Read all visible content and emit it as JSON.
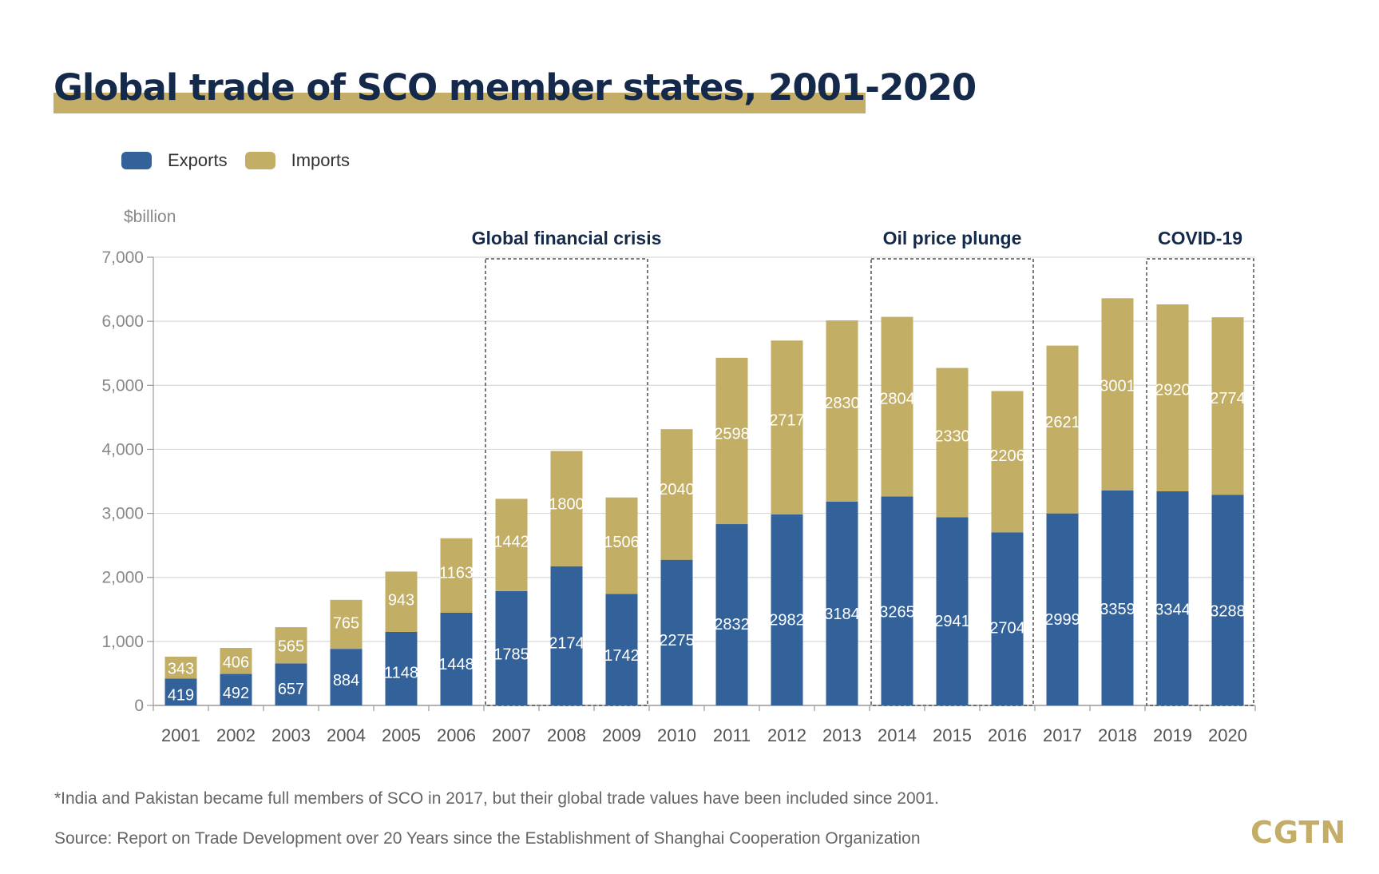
{
  "colors": {
    "exports": "#33629a",
    "imports": "#c3ae66",
    "title": "#152a4a",
    "accent": "#c4ae67"
  },
  "logo": "CGTN",
  "footnote": "*India and Pakistan became full members of SCO in 2017, but their global trade values have been included since 2001.",
  "source": "Source: Report on Trade Development over 20 Years since the Establishment of Shanghai Cooperation Organization",
  "chart_data": {
    "type": "bar",
    "stacked": true,
    "title": "Global trade of SCO member states, 2001-2020",
    "ylabel": "$billion",
    "ylim": [
      0,
      7000
    ],
    "yticks": [
      0,
      1000,
      2000,
      3000,
      4000,
      5000,
      6000,
      7000
    ],
    "ytick_labels": [
      "0",
      "1,000",
      "2,000",
      "3,000",
      "4,000",
      "5,000",
      "6,000",
      "7,000"
    ],
    "grid": true,
    "legend_position": "top-left",
    "categories": [
      "2001",
      "2002",
      "2003",
      "2004",
      "2005",
      "2006",
      "2007",
      "2008",
      "2009",
      "2010",
      "2011",
      "2012",
      "2013",
      "2014",
      "2015",
      "2016",
      "2017",
      "2018",
      "2019",
      "2020"
    ],
    "series": [
      {
        "name": "Exports",
        "values": [
          419,
          492,
          657,
          884,
          1148,
          1448,
          1785,
          2174,
          1742,
          2275,
          2832,
          2982,
          3184,
          3265,
          2941,
          2704,
          2999,
          3359,
          3344,
          3288
        ]
      },
      {
        "name": "Imports",
        "values": [
          343,
          406,
          565,
          765,
          943,
          1163,
          1442,
          1800,
          1506,
          2040,
          2598,
          2717,
          2830,
          2804,
          2330,
          2206,
          2621,
          3001,
          2920,
          2774
        ]
      }
    ],
    "annotations": [
      {
        "label": "Global financial crisis",
        "from": "2007",
        "to": "2009"
      },
      {
        "label": "Oil price plunge",
        "from": "2014",
        "to": "2016"
      },
      {
        "label": "COVID-19",
        "from": "2019",
        "to": "2020"
      }
    ]
  }
}
